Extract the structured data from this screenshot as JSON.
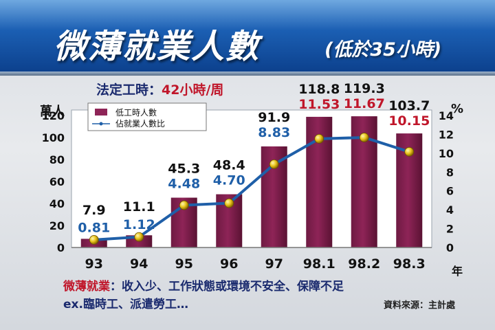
{
  "header": {
    "title": "微薄就業人數",
    "subtitle": "(低於35小時)"
  },
  "legal_hours": {
    "label": "法定工時：",
    "value": "42小時/周"
  },
  "units": {
    "left": "萬人",
    "right": "%",
    "x": "年"
  },
  "footer": {
    "term": "微薄就業",
    "definition": "：收入少、工作狀態或環境不安全、保障不足",
    "examples": "ex.臨時工、派遣勞工…",
    "source": "資料來源：主計處"
  },
  "colors": {
    "bar": "#8e2457",
    "line": "#1f5fa8",
    "bar_label": "#111111",
    "pct_label_blue": "#1f5fa8",
    "pct_label_red": "#c0162a"
  },
  "chart_data": {
    "type": "bar+line",
    "categories": [
      "93",
      "94",
      "95",
      "96",
      "97",
      "98.1",
      "98.2",
      "98.3"
    ],
    "series": [
      {
        "name": "低工時人數",
        "type": "bar",
        "axis": "left",
        "values": [
          7.9,
          11.1,
          45.3,
          48.4,
          91.9,
          118.8,
          119.3,
          103.7
        ],
        "labels": [
          "7.9",
          "11.1",
          "45.3",
          "48.4",
          "91.9",
          "118.8",
          "119.3",
          "103.7"
        ]
      },
      {
        "name": "佔就業人數比",
        "type": "line",
        "axis": "right",
        "values": [
          0.81,
          1.12,
          4.48,
          4.7,
          8.83,
          11.53,
          11.67,
          10.15
        ],
        "labels": [
          "0.81",
          "1.12",
          "4.48",
          "4.70",
          "8.83",
          "11.53",
          "11.67",
          "10.15"
        ]
      }
    ],
    "y_left": {
      "ticks": [
        "0",
        "20",
        "40",
        "60",
        "80",
        "100",
        "120"
      ],
      "range": [
        0,
        120
      ]
    },
    "y_right": {
      "ticks": [
        "0",
        "2",
        "4",
        "6",
        "8",
        "10",
        "12",
        "14"
      ],
      "range": [
        0,
        14
      ]
    },
    "legend_position": "top-left"
  }
}
